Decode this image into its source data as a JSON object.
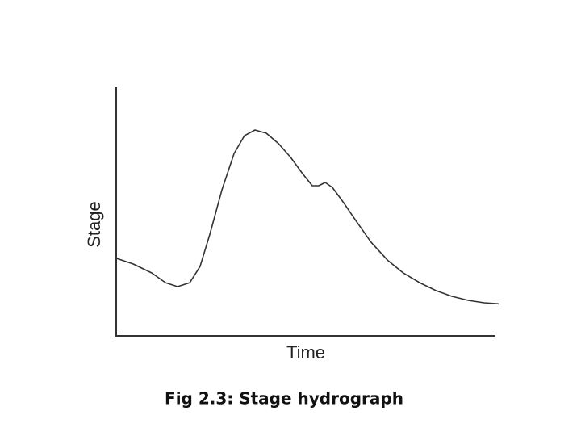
{
  "chart_data": {
    "type": "line",
    "title": "Fig 2.3: Stage hydrograph",
    "x_label": "Time",
    "y_label": "Stage",
    "x": [
      0,
      4.5,
      9.4,
      13.0,
      16.2,
      19.4,
      22.1,
      24.7,
      27.9,
      31.1,
      33.8,
      36.6,
      39.6,
      42.8,
      46.0,
      49.1,
      51.7,
      53.4,
      55.1,
      57.0,
      59.8,
      63.0,
      67.2,
      71.5,
      75.7,
      80.0,
      84.3,
      88.5,
      92.8,
      97.0,
      100.9
    ],
    "values": [
      31.2,
      28.9,
      25.3,
      21.4,
      19.8,
      21.4,
      27.9,
      40.9,
      58.8,
      73.4,
      80.5,
      82.8,
      81.5,
      77.3,
      71.8,
      65.3,
      60.4,
      60.4,
      61.7,
      59.7,
      53.9,
      46.8,
      37.7,
      30.5,
      25.3,
      21.4,
      18.2,
      15.9,
      14.3,
      13.3,
      12.9
    ],
    "color": "#333333",
    "xlim": [
      0,
      100
    ],
    "ylim": [
      0,
      100
    ]
  }
}
